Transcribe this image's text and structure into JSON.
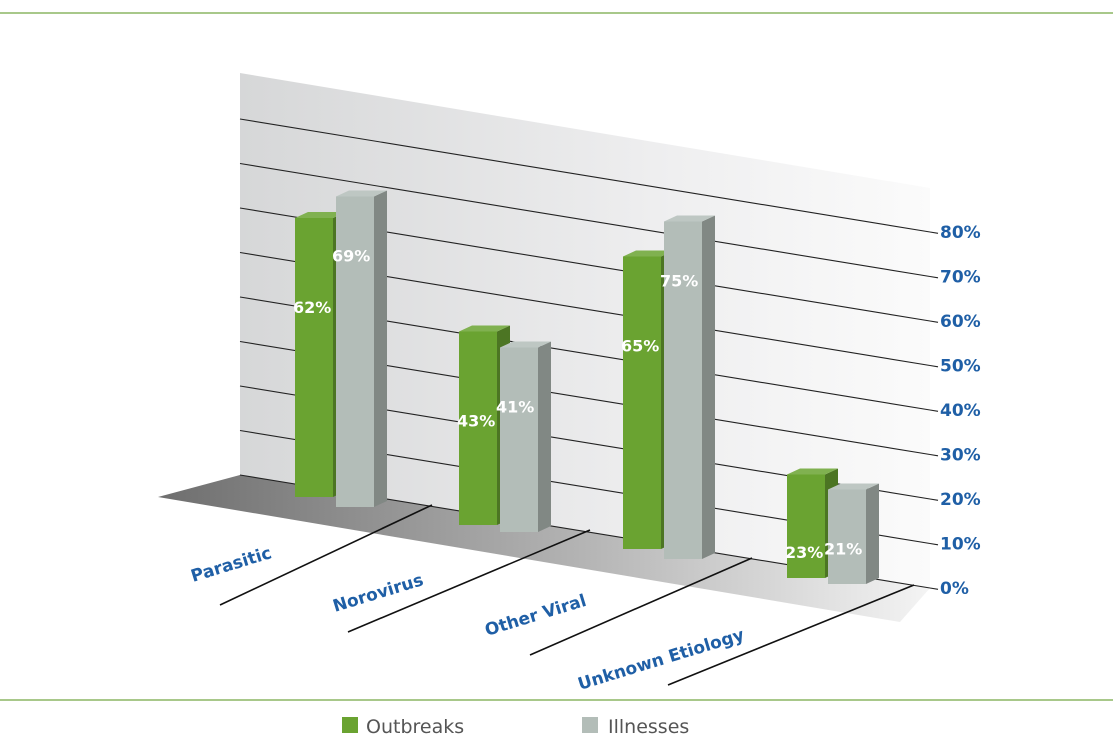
{
  "chart_data": {
    "type": "bar",
    "categories": [
      "Parasitic",
      "Norovirus",
      "Other Viral",
      "Unknown Etiology"
    ],
    "series": [
      {
        "name": "Outbreaks",
        "values": [
          62,
          43,
          65,
          23
        ],
        "labels": [
          "62%",
          "43%",
          "65%",
          "23%"
        ]
      },
      {
        "name": "Illnesses",
        "values": [
          69,
          41,
          75,
          21
        ],
        "labels": [
          "69%",
          "41%",
          "75%",
          "21%"
        ]
      }
    ],
    "ylim": [
      0,
      80
    ],
    "yticks": [
      "0%",
      "10%",
      "20%",
      "30%",
      "40%",
      "50%",
      "60%",
      "70%",
      "80%"
    ],
    "legend_position": "bottom",
    "colors": {
      "outbreaks": "#6aa331",
      "illnesses": "#b3bdb8",
      "tick_text": "#1f5fa6",
      "rule": "#8cb564"
    }
  }
}
